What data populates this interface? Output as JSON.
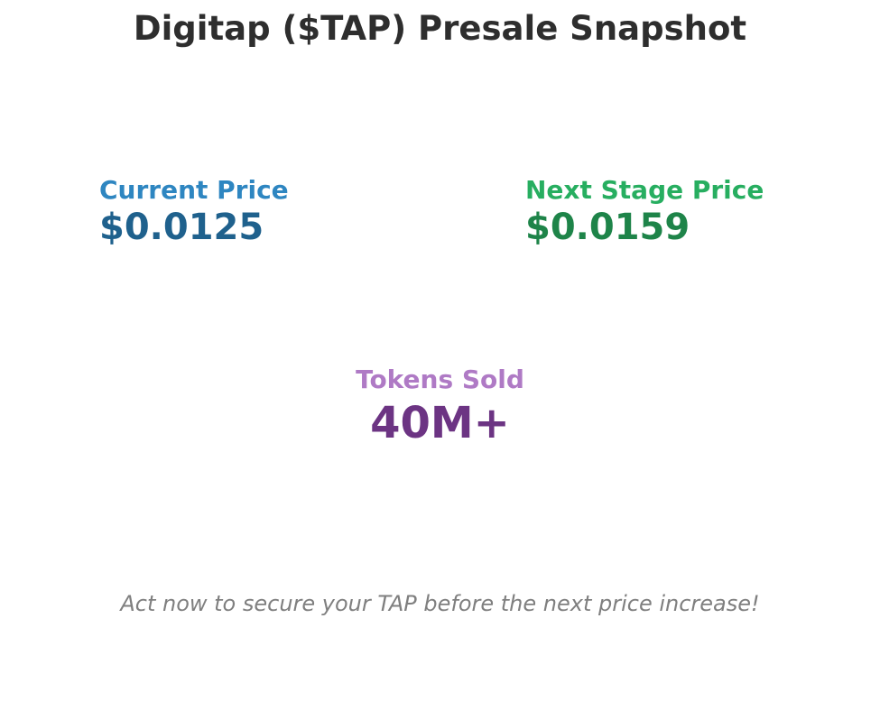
{
  "title": "Digitap ($TAP) Presale Snapshot",
  "stats": {
    "current": {
      "label": "Current Price",
      "value": "$0.0125",
      "label_color": "#2e86c1",
      "value_color": "#1f618d"
    },
    "next": {
      "label": "Next Stage Price",
      "value": "$0.0159",
      "label_color": "#27ae60",
      "value_color": "#1e8449"
    },
    "tokens": {
      "label": "Tokens Sold",
      "value": "40M+",
      "label_color": "#af7ac5",
      "value_color": "#6c3483"
    }
  },
  "footer": "Act now to secure your TAP before the next price increase!"
}
